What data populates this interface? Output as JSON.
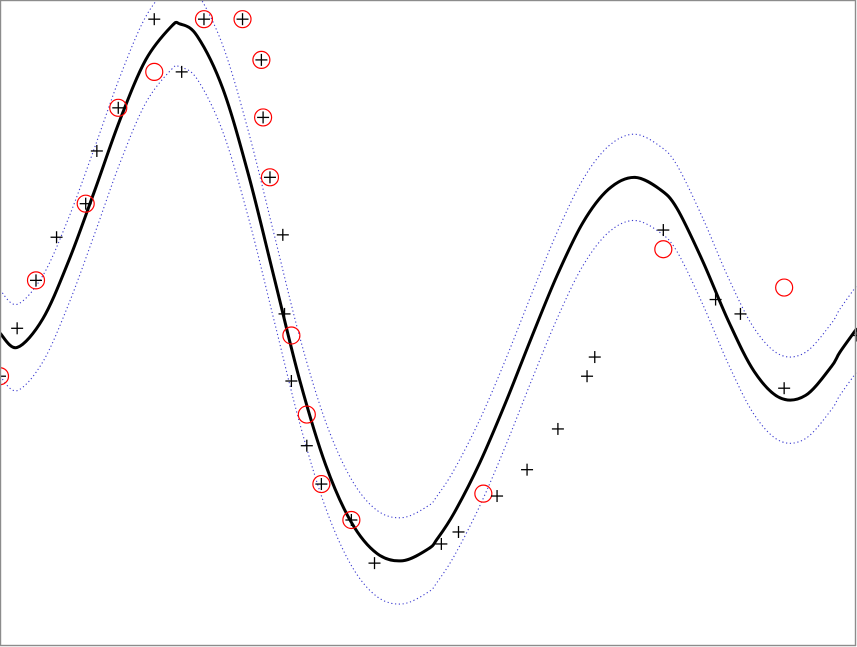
{
  "chart_data": {
    "type": "scatter",
    "title": "",
    "xlabel": "",
    "ylabel": "",
    "xlim": [
      0,
      1
    ],
    "ylim": [
      -1.35,
      1.35
    ],
    "grid": false,
    "legend": "none",
    "colors": {
      "frame": "#7f7f7f",
      "fit_line": "#000000",
      "band": "#3a3acf",
      "points": "#000000",
      "support_vector_markers": "#ff0000"
    },
    "series": [
      {
        "type": "line",
        "style": "solid-thick",
        "x": [
          0,
          0.02,
          0.05,
          0.08,
          0.11,
          0.14,
          0.17,
          0.2,
          0.21,
          0.23,
          0.26,
          0.29,
          0.32,
          0.35,
          0.38,
          0.41,
          0.44,
          0.47,
          0.5,
          0.51,
          0.53,
          0.56,
          0.59,
          0.62,
          0.65,
          0.68,
          0.71,
          0.74,
          0.77,
          0.79,
          0.82,
          0.85,
          0.88,
          0.91,
          0.94,
          0.97,
          0.98,
          1
        ],
        "y": [
          -0.04,
          -0.1,
          0.02,
          0.26,
          0.55,
          0.85,
          1.1,
          1.24,
          1.25,
          1.2,
          0.98,
          0.62,
          0.19,
          -0.24,
          -0.59,
          -0.83,
          -0.96,
          -0.99,
          -0.94,
          -0.9,
          -0.79,
          -0.58,
          -0.33,
          -0.06,
          0.2,
          0.42,
          0.56,
          0.61,
          0.56,
          0.48,
          0.26,
          0.01,
          -0.2,
          -0.31,
          -0.3,
          -0.18,
          -0.12,
          -0.02
        ]
      },
      {
        "type": "line",
        "style": "dotted-upper",
        "x": [
          0,
          0.02,
          0.05,
          0.08,
          0.11,
          0.14,
          0.17,
          0.2,
          0.21,
          0.23,
          0.26,
          0.29,
          0.32,
          0.35,
          0.38,
          0.41,
          0.44,
          0.47,
          0.5,
          0.51,
          0.53,
          0.56,
          0.59,
          0.62,
          0.65,
          0.68,
          0.71,
          0.74,
          0.77,
          0.79,
          0.82,
          0.85,
          0.88,
          0.91,
          0.94,
          0.97,
          0.98,
          1
        ],
        "y": [
          0.14,
          0.08,
          0.2,
          0.44,
          0.73,
          1.03,
          1.28,
          1.42,
          1.43,
          1.38,
          1.16,
          0.8,
          0.37,
          -0.06,
          -0.41,
          -0.65,
          -0.78,
          -0.81,
          -0.76,
          -0.72,
          -0.61,
          -0.4,
          -0.15,
          0.12,
          0.38,
          0.6,
          0.74,
          0.79,
          0.74,
          0.66,
          0.44,
          0.19,
          -0.02,
          -0.13,
          -0.12,
          0,
          0.06,
          0.16
        ]
      },
      {
        "type": "line",
        "style": "dotted-lower",
        "x": [
          0,
          0.02,
          0.05,
          0.08,
          0.11,
          0.14,
          0.17,
          0.2,
          0.21,
          0.23,
          0.26,
          0.29,
          0.32,
          0.35,
          0.38,
          0.41,
          0.44,
          0.47,
          0.5,
          0.51,
          0.53,
          0.56,
          0.59,
          0.62,
          0.65,
          0.68,
          0.71,
          0.74,
          0.77,
          0.79,
          0.82,
          0.85,
          0.88,
          0.91,
          0.94,
          0.97,
          0.98,
          1
        ],
        "y": [
          -0.22,
          -0.28,
          -0.16,
          0.08,
          0.37,
          0.67,
          0.92,
          1.06,
          1.07,
          1.02,
          0.8,
          0.44,
          0.01,
          -0.42,
          -0.77,
          -1.01,
          -1.14,
          -1.17,
          -1.12,
          -1.08,
          -0.97,
          -0.76,
          -0.51,
          -0.24,
          0.02,
          0.24,
          0.38,
          0.43,
          0.38,
          0.3,
          0.08,
          -0.17,
          -0.38,
          -0.49,
          -0.48,
          -0.36,
          -0.3,
          -0.2
        ]
      },
      {
        "type": "scatter",
        "marker": "plus",
        "x": [
          0.0,
          0.02,
          0.042,
          0.066,
          0.1,
          0.113,
          0.138,
          0.18,
          0.212,
          0.238,
          0.283,
          0.305,
          0.307,
          0.315,
          0.33,
          0.332,
          0.34,
          0.358,
          0.375,
          0.41,
          0.437,
          0.515,
          0.535,
          0.58,
          0.615,
          0.651,
          0.685,
          0.694,
          0.774,
          0.835,
          0.864,
          0.915,
          1.0
        ],
        "y": [
          -0.22,
          -0.02,
          0.18,
          0.36,
          0.5,
          0.72,
          0.9,
          1.27,
          1.05,
          1.27,
          1.27,
          1.1,
          0.86,
          0.61,
          0.37,
          0.04,
          -0.24,
          -0.51,
          -0.67,
          -0.82,
          -1.0,
          -0.92,
          -0.87,
          -0.72,
          -0.61,
          -0.44,
          -0.22,
          -0.14,
          0.39,
          0.1,
          0.04,
          -0.27,
          -0.05
        ]
      },
      {
        "type": "scatter",
        "marker": "circle",
        "name": "",
        "x": [
          0.0,
          0.042,
          0.1,
          0.138,
          0.18,
          0.238,
          0.283,
          0.305,
          0.307,
          0.315,
          0.34,
          0.358,
          0.375,
          0.41,
          0.564,
          0.774,
          0.915
        ],
        "y": [
          -0.22,
          0.18,
          0.5,
          0.9,
          1.05,
          1.27,
          1.27,
          1.1,
          0.86,
          0.61,
          -0.05,
          -0.38,
          -0.67,
          -0.82,
          -0.71,
          0.31,
          0.15
        ]
      }
    ]
  }
}
